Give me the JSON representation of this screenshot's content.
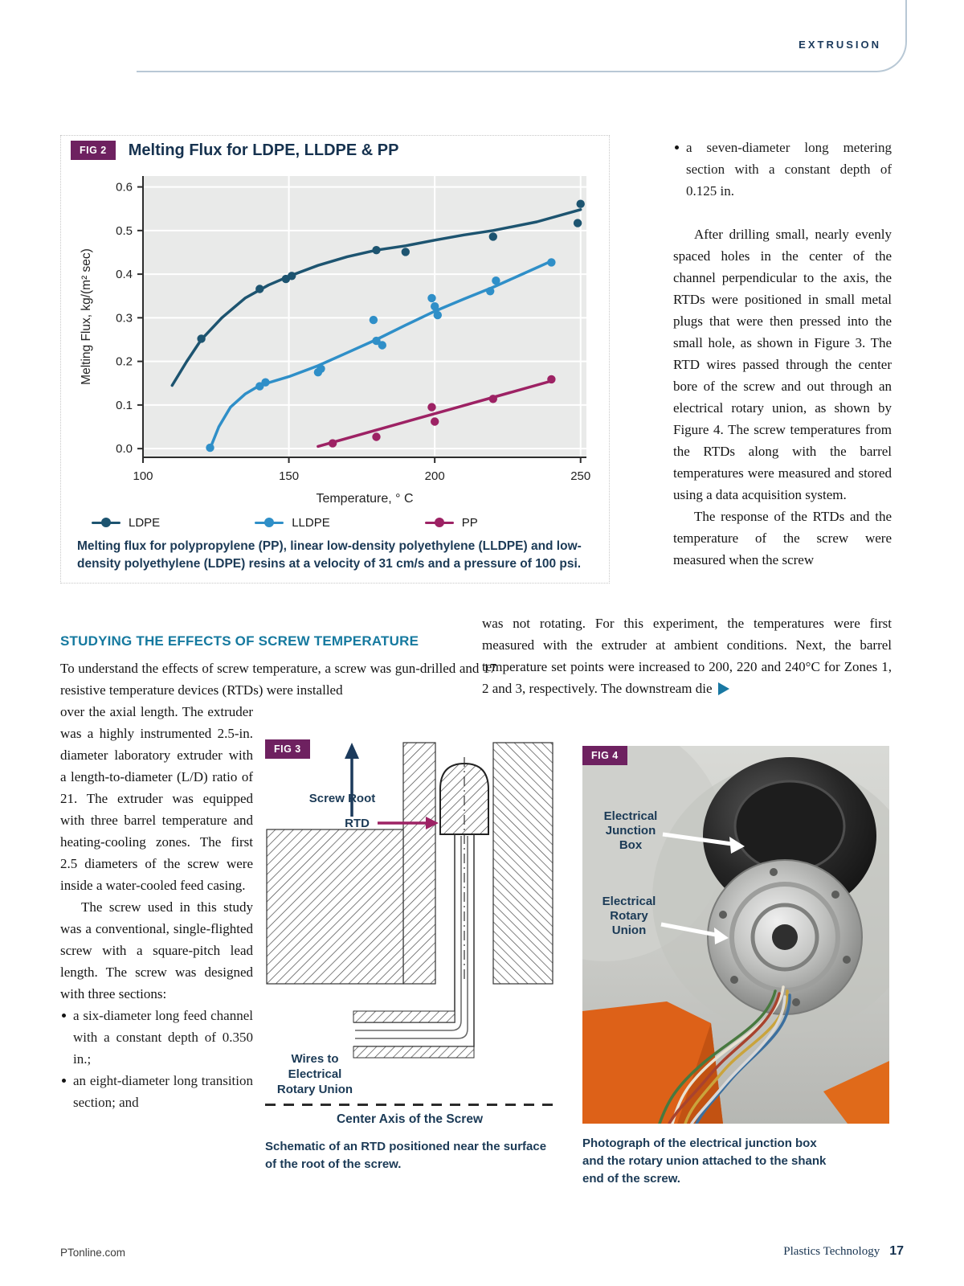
{
  "page": {
    "kicker": "EXTRUSION",
    "footer": {
      "left": "PTonline.com",
      "brand": "Plastics Technology",
      "page_number": "17"
    }
  },
  "colors": {
    "accent_navy": "#1b3a56",
    "heading_teal": "#15799f",
    "badge_plum": "#6e2160",
    "ldpe": "#1d5470",
    "lldpe": "#2f8fc8",
    "pp": "#9d2264"
  },
  "fig2": {
    "badge": "FIG 2",
    "title": "Melting Flux for LDPE, LLDPE & PP",
    "caption": "Melting flux for polypropylene (PP), linear low-density polyethylene (LLDPE) and low-density polyethylene (LDPE) resins at a velocity of 31 cm/s and a pressure of 100 psi."
  },
  "chart_data": {
    "type": "scatter",
    "title": "Melting Flux for LDPE, LLDPE & PP",
    "xlabel": "Temperature, ° C",
    "ylabel": "Melting Flux, kg/(m² sec)",
    "xlim": [
      100,
      250
    ],
    "ylim": [
      0.0,
      0.6
    ],
    "xticks": [
      100,
      150,
      200,
      250
    ],
    "yticks": [
      0.0,
      0.1,
      0.2,
      0.3,
      0.4,
      0.5,
      0.6
    ],
    "x_display": [
      100,
      252
    ],
    "y_display": [
      -0.02,
      0.625
    ],
    "grid": true,
    "legend_position": "bottom",
    "series": [
      {
        "name": "LDPE",
        "color": "#1d5470",
        "points": [
          [
            120,
            0.252
          ],
          [
            140,
            0.366
          ],
          [
            149,
            0.389
          ],
          [
            151,
            0.396
          ],
          [
            180,
            0.455
          ],
          [
            190,
            0.451
          ],
          [
            220,
            0.486
          ],
          [
            249,
            0.517
          ],
          [
            250,
            0.561
          ]
        ],
        "trend": [
          [
            110,
            0.145
          ],
          [
            115,
            0.2
          ],
          [
            120,
            0.25
          ],
          [
            127,
            0.3
          ],
          [
            135,
            0.345
          ],
          [
            143,
            0.375
          ],
          [
            150,
            0.395
          ],
          [
            160,
            0.42
          ],
          [
            170,
            0.44
          ],
          [
            180,
            0.455
          ],
          [
            190,
            0.465
          ],
          [
            200,
            0.478
          ],
          [
            210,
            0.49
          ],
          [
            220,
            0.5
          ],
          [
            235,
            0.52
          ],
          [
            250,
            0.548
          ]
        ]
      },
      {
        "name": "LLDPE",
        "color": "#2f8fc8",
        "points": [
          [
            123,
            0.002
          ],
          [
            140,
            0.143
          ],
          [
            142,
            0.152
          ],
          [
            160,
            0.175
          ],
          [
            161,
            0.183
          ],
          [
            179,
            0.295
          ],
          [
            180,
            0.247
          ],
          [
            182,
            0.237
          ],
          [
            199,
            0.345
          ],
          [
            200,
            0.326
          ],
          [
            201,
            0.306
          ],
          [
            219,
            0.361
          ],
          [
            221,
            0.385
          ],
          [
            240,
            0.427
          ]
        ],
        "trend": [
          [
            123,
            0.0
          ],
          [
            126,
            0.05
          ],
          [
            130,
            0.095
          ],
          [
            135,
            0.125
          ],
          [
            140,
            0.145
          ],
          [
            150,
            0.165
          ],
          [
            160,
            0.19
          ],
          [
            170,
            0.22
          ],
          [
            180,
            0.25
          ],
          [
            190,
            0.283
          ],
          [
            200,
            0.315
          ],
          [
            210,
            0.343
          ],
          [
            220,
            0.37
          ],
          [
            230,
            0.4
          ],
          [
            240,
            0.43
          ]
        ]
      },
      {
        "name": "PP",
        "color": "#9d2264",
        "points": [
          [
            165,
            0.012
          ],
          [
            180,
            0.027
          ],
          [
            199,
            0.095
          ],
          [
            200,
            0.062
          ],
          [
            220,
            0.114
          ],
          [
            240,
            0.159
          ]
        ],
        "trend": [
          [
            160,
            0.005
          ],
          [
            240,
            0.155
          ]
        ]
      }
    ]
  },
  "article": {
    "right_col": {
      "bullet": "a seven-diameter long metering section with a constant depth of 0.125 in.",
      "para1": "After drilling small, nearly evenly spaced holes in the center of the channel perpendicular to the axis, the RTDs were positioned in small metal plugs that were then pressed into the small hole, as shown in Figure 3. The RTD wires passed through the center bore of the screw and out through an electrical rotary union, as shown by Figure 4. The screw temperatures from the RTDs along with the barrel temperatures were measured and stored using a data acquisition system.",
      "para2_start": "The response of the RTDs and the temperature of the screw were measured when the screw"
    },
    "mid_para": "was not rotating. For this experiment, the temperatures were first measured with the extruder at ambient conditions. Next, the barrel temperature set points were increased to 200, 220 and 240°C for Zones 1, 2 and 3, respectively. The downstream die",
    "section_heading": "STUDYING THE EFFECTS OF SCREW TEMPERATURE",
    "left_intro": "To understand the effects of screw temperature, a screw was gun-drilled and 17 resistive temperature devices (RTDs) were installed",
    "left_col_para1": "over the axial length. The extruder was a highly instrumented 2.5-in. diameter laboratory extruder with a length-to-diameter (L/D) ratio of 21. The extruder was equipped with three barrel temperature and heating-cooling zones. The first 2.5 diameters of the screw were inside a water-cooled feed casing.",
    "left_col_para2": "The screw used in this study was a conventional, single-flighted screw with a square-pitch lead length. The screw was designed with three sections:",
    "left_bullets": [
      "a six-diameter long feed channel with a constant depth of 0.350 in.;",
      "an eight-diameter long transition section; and"
    ]
  },
  "fig3": {
    "badge": "FIG 3",
    "labels": {
      "screw_root": "Screw Root",
      "rtd": "RTD",
      "wires": [
        "Wires to",
        "Electrical",
        "Rotary Union"
      ],
      "axis": "Center Axis of the Screw"
    },
    "caption": "Schematic of an RTD positioned near the surface of the root of the screw."
  },
  "fig4": {
    "badge": "FIG 4",
    "labels": {
      "junction_box": [
        "Electrical",
        "Junction",
        "Box"
      ],
      "rotary_union": [
        "Electrical",
        "Rotary",
        "Union"
      ]
    },
    "caption": "Photograph of the electrical junction box and the rotary union attached to the shank end of the screw."
  }
}
